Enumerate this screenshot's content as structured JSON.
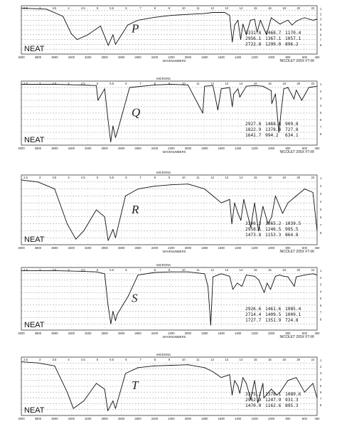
{
  "chart_data": [
    {
      "type": "line",
      "label": "P",
      "sample_label": "NEAT",
      "instrument": "NICOLET 205X FT-IR",
      "x_title": "WAVENUMBERS",
      "top_title": "",
      "peaks": [
        [
          "3331.8",
          "1468.7",
          "1170.4"
        ],
        [
          "2956.1",
          "1367.1",
          "1057.1"
        ],
        [
          "2722.8",
          "1299.0",
          "896.2"
        ]
      ],
      "x": [
        4000,
        3700,
        3500,
        3400,
        3331,
        3200,
        3050,
        2956,
        2900,
        2870,
        2723,
        2600,
        2400,
        2200,
        2000,
        1800,
        1700,
        1560,
        1500,
        1468,
        1440,
        1400,
        1367,
        1340,
        1300,
        1250,
        1200,
        1170,
        1130,
        1057,
        1000,
        896,
        850,
        800,
        750,
        700,
        650,
        600,
        500,
        450
      ],
      "y": [
        95,
        93,
        78,
        42,
        30,
        40,
        58,
        18,
        40,
        20,
        60,
        70,
        76,
        80,
        82,
        84,
        86,
        86,
        80,
        25,
        60,
        70,
        30,
        62,
        40,
        70,
        72,
        45,
        70,
        40,
        75,
        62,
        66,
        70,
        60,
        68,
        72,
        75,
        70,
        72
      ]
    },
    {
      "type": "line",
      "label": "Q",
      "sample_label": "NEAT",
      "instrument": "NICOLET 205X FT-IR",
      "x_title": "WAVENUMBERS",
      "top_title": "MICRONS",
      "peaks": [
        [
          "2927.8",
          "1468.8",
          "909.8"
        ],
        [
          "1822.9",
          "1378.8",
          "727.8"
        ],
        [
          "1641.7",
          "994.2",
          "634.1"
        ]
      ],
      "x": [
        4000,
        3600,
        3300,
        3100,
        3080,
        3000,
        2960,
        2927,
        2900,
        2870,
        2850,
        2700,
        2400,
        2200,
        2000,
        1822,
        1800,
        1700,
        1641,
        1600,
        1500,
        1468,
        1450,
        1400,
        1378,
        1300,
        1200,
        1100,
        1000,
        994,
        950,
        909,
        850,
        800,
        727,
        700,
        634,
        550,
        450
      ],
      "y": [
        95,
        95,
        94,
        93,
        70,
        88,
        40,
        5,
        30,
        12,
        20,
        90,
        94,
        95,
        94,
        50,
        92,
        93,
        55,
        88,
        90,
        60,
        80,
        88,
        75,
        92,
        93,
        92,
        85,
        65,
        80,
        20,
        88,
        90,
        72,
        86,
        70,
        90,
        92
      ]
    },
    {
      "type": "line",
      "label": "R",
      "sample_label": "NEAT",
      "instrument": "NICOLET 205X FT-IR",
      "x_title": "WAVENUMBERS",
      "top_title": "MICRONS",
      "peaks": [
        [
          "3346.2",
          "1365.2",
          "1039.5"
        ],
        [
          "2958.1",
          "1246.5",
          "995.5"
        ],
        [
          "1473.8",
          "1153.3",
          "864.8"
        ]
      ],
      "x": [
        4000,
        3800,
        3600,
        3450,
        3346,
        3250,
        3100,
        3000,
        2958,
        2900,
        2870,
        2750,
        2600,
        2400,
        2200,
        2000,
        1800,
        1700,
        1600,
        1500,
        1473,
        1440,
        1400,
        1365,
        1330,
        1300,
        1246,
        1200,
        1153,
        1100,
        1039,
        995,
        950,
        864,
        800,
        700,
        600,
        500,
        450
      ],
      "y": [
        93,
        90,
        80,
        30,
        8,
        20,
        50,
        40,
        6,
        22,
        10,
        70,
        80,
        84,
        86,
        87,
        80,
        70,
        60,
        65,
        30,
        60,
        45,
        35,
        65,
        50,
        25,
        60,
        20,
        55,
        30,
        40,
        70,
        45,
        60,
        70,
        80,
        75,
        20
      ]
    },
    {
      "type": "line",
      "label": "S",
      "sample_label": "NEAT",
      "instrument": "NICOLET 205X FT-IR",
      "x_title": "WAVENUMBERS",
      "top_title": "MICRONS",
      "peaks": [
        [
          "2926.6",
          "1461.6",
          "1085.4"
        ],
        [
          "2714.4",
          "1409.5",
          "1009.1"
        ],
        [
          "1727.7",
          "1351.9",
          "724.8"
        ]
      ],
      "x": [
        4000,
        3600,
        3300,
        3100,
        3000,
        2960,
        2926,
        2900,
        2870,
        2850,
        2714,
        2600,
        2400,
        2200,
        2000,
        1800,
        1760,
        1727,
        1700,
        1600,
        1500,
        1461,
        1409,
        1351,
        1300,
        1200,
        1150,
        1085,
        1050,
        1009,
        950,
        900,
        850,
        800,
        724,
        700,
        600,
        500,
        450
      ],
      "y": [
        95,
        95,
        94,
        93,
        90,
        40,
        10,
        30,
        15,
        25,
        55,
        88,
        92,
        93,
        93,
        90,
        70,
        8,
        85,
        90,
        86,
        65,
        75,
        70,
        88,
        86,
        80,
        60,
        75,
        65,
        86,
        88,
        86,
        85,
        70,
        85,
        88,
        90,
        88
      ]
    },
    {
      "type": "line",
      "label": "T",
      "sample_label": "NEAT",
      "instrument": "",
      "x_title": "",
      "top_title": "MICRONS",
      "peaks": [
        [
          "3375.2",
          "1378.1",
          "1089.6"
        ],
        [
          "2962.9",
          "1247.9",
          "931.3"
        ],
        [
          "1470.0",
          "1162.6",
          "895.3"
        ]
      ],
      "x": [
        4000,
        3800,
        3600,
        3450,
        3375,
        3250,
        3100,
        3000,
        2962,
        2900,
        2870,
        2750,
        2600,
        2400,
        2200,
        2000,
        1800,
        1700,
        1600,
        1500,
        1470,
        1440,
        1400,
        1378,
        1340,
        1300,
        1247,
        1200,
        1162,
        1100,
        1089,
        1000,
        931,
        895,
        800,
        700,
        600,
        500,
        450
      ],
      "y": [
        92,
        90,
        85,
        40,
        12,
        25,
        55,
        45,
        8,
        25,
        12,
        72,
        82,
        85,
        86,
        87,
        82,
        75,
        65,
        70,
        35,
        60,
        50,
        38,
        65,
        55,
        28,
        60,
        22,
        55,
        30,
        45,
        35,
        40,
        60,
        65,
        40,
        55,
        30
      ]
    }
  ],
  "axis": {
    "xlim": [
      4000,
      450
    ],
    "ylim": [
      0,
      100
    ],
    "bottom_ticks": [
      "4000",
      "3800",
      "3600",
      "3400",
      "3200",
      "3000",
      "2800",
      "2600",
      "2400",
      "2200",
      "2000",
      "1800",
      "1600",
      "1400",
      "1200",
      "1000",
      "800",
      "600",
      "450"
    ],
    "top_ticks": [
      "2.5",
      "3",
      "3.5",
      "4",
      "4.5",
      "5",
      "5.5",
      "6",
      "7",
      "8",
      "9",
      "10",
      "11",
      "12",
      "13",
      "14",
      "15",
      "16",
      "18",
      "20",
      "22"
    ],
    "right_ticks": [
      "1",
      "2",
      "3",
      "4",
      "5",
      "6",
      "7",
      "8"
    ],
    "grid": true
  }
}
